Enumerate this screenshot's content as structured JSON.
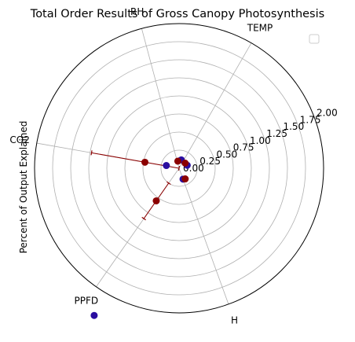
{
  "chart_data": {
    "type": "scatter",
    "projection": "polar",
    "title": "Total Order Results of Gross Canopy Photosynthesis",
    "ylabel": "Percent of Output Explained",
    "categories": [
      "TEMP",
      "RH",
      "CO2",
      "PPFD",
      "H"
    ],
    "category_angles_deg": [
      60,
      105,
      170,
      235,
      290
    ],
    "radial_ticks": [
      "0.00",
      "0.25",
      "0.50",
      "0.75",
      "1.00",
      "1.25",
      "1.50",
      "1.75",
      "2.00"
    ],
    "rlim": [
      0,
      2.0
    ],
    "grid": true,
    "legend": {
      "location": "upper-right",
      "entries": []
    },
    "series": [
      {
        "color": "#2a0ea0",
        "points": [
          {
            "theta_deg": 20,
            "r": 0.12
          },
          {
            "theta_deg": 75,
            "r": 0.12
          },
          {
            "theta_deg": 168,
            "r": 0.18
          },
          {
            "theta_deg": 240,
            "r": 2.35
          },
          {
            "theta_deg": 290,
            "r": 0.16
          }
        ]
      },
      {
        "color": "#8b0000",
        "points": [
          {
            "theta_deg": 40,
            "r": 0.11,
            "err": 0.02
          },
          {
            "theta_deg": 100,
            "r": 0.1,
            "err": 0.02
          },
          {
            "theta_deg": 170,
            "r": 0.48,
            "err": 0.75
          },
          {
            "theta_deg": 235,
            "r": 0.55,
            "err": 0.3
          },
          {
            "theta_deg": 300,
            "r": 0.17,
            "err": 0.02
          }
        ]
      }
    ]
  }
}
